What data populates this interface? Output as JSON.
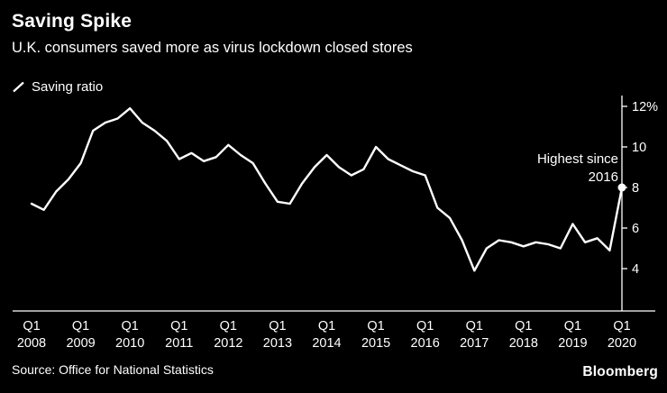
{
  "header": {
    "title": "Saving Spike",
    "subtitle": "U.K. consumers saved more as virus lockdown closed stores"
  },
  "legend": {
    "label": "Saving ratio"
  },
  "annotation": {
    "line1": "Highest since",
    "line2": "2016"
  },
  "footer": {
    "source": "Source: Office for National Statistics",
    "brand": "Bloomberg"
  },
  "colors": {
    "background": "#000000",
    "foreground": "#ffffff",
    "line": "#ffffff"
  },
  "chart_data": {
    "type": "line",
    "title": "Saving Spike",
    "series_name": "Saving ratio",
    "frequency": "quarterly",
    "x_start": "2008 Q1",
    "x_end": "2020 Q1",
    "x_tick_prefix": "Q1",
    "x_ticks": [
      "2008",
      "2009",
      "2010",
      "2011",
      "2012",
      "2013",
      "2014",
      "2015",
      "2016",
      "2017",
      "2018",
      "2019",
      "2020"
    ],
    "values": [
      7.2,
      6.9,
      7.8,
      8.4,
      9.2,
      10.8,
      11.2,
      11.4,
      11.9,
      11.2,
      10.8,
      10.3,
      9.4,
      9.7,
      9.3,
      9.5,
      10.1,
      9.6,
      9.2,
      8.2,
      7.3,
      7.2,
      8.2,
      9.0,
      9.6,
      9.0,
      8.6,
      8.9,
      10.0,
      9.4,
      9.1,
      8.8,
      8.6,
      7.0,
      6.5,
      5.4,
      3.9,
      5.0,
      5.4,
      5.3,
      5.1,
      5.3,
      5.2,
      5.0,
      6.2,
      5.3,
      5.5,
      4.9,
      8.0
    ],
    "y_ticks": [
      4,
      6,
      8,
      10,
      12
    ],
    "y_tick_labels": [
      "4",
      "6",
      "8",
      "10",
      "12%"
    ],
    "ylim": [
      4,
      12
    ],
    "grid": false,
    "axis_position": "right",
    "legend_position": "top-left",
    "annotation": "Highest since 2016",
    "annotation_target": "2020 Q1"
  }
}
